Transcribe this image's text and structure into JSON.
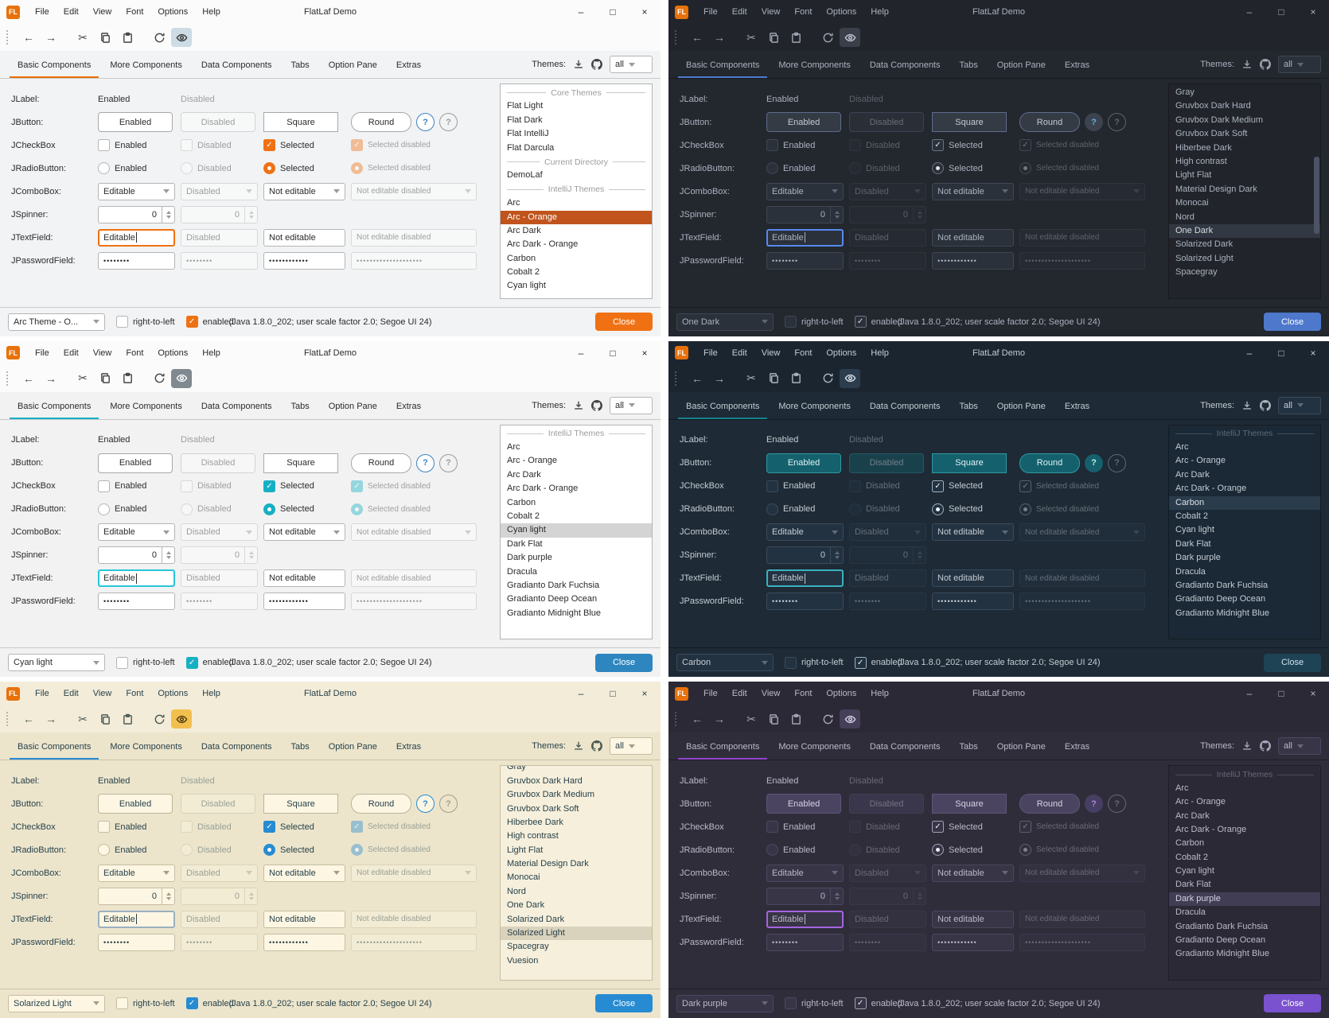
{
  "shared": {
    "logo": "FL",
    "title": "FlatLaf Demo",
    "menus": [
      "File",
      "Edit",
      "View",
      "Font",
      "Options",
      "Help"
    ],
    "tabs": [
      "Basic Components",
      "More Components",
      "Data Components",
      "Tabs",
      "Option Pane",
      "Extras"
    ],
    "themes_label": "Themes:",
    "filter_value": "all",
    "status_info": "(Java 1.8.0_202;  user scale factor 2.0; Segoe UI 24)",
    "close_label": "Close",
    "rtl_label": "right-to-left",
    "enabled_label": "enabled",
    "icons": {
      "minimize": "–",
      "maximize": "□",
      "close": "×",
      "back": "←",
      "forward": "→",
      "cut": "✂",
      "check": "✓"
    },
    "rows": {
      "jlabel": {
        "label": "JLabel:",
        "enabled": "Enabled",
        "disabled": "Disabled"
      },
      "jbutton": {
        "label": "JButton:",
        "enabled": "Enabled",
        "disabled": "Disabled",
        "square": "Square",
        "round": "Round",
        "help": "?"
      },
      "jcheckbox": {
        "label": "JCheckBox",
        "enabled": "Enabled",
        "disabled": "Disabled",
        "selected": "Selected",
        "selected_disabled": "Selected disabled"
      },
      "jradio": {
        "label": "JRadioButton:",
        "enabled": "Enabled",
        "disabled": "Disabled",
        "selected": "Selected",
        "selected_disabled": "Selected disabled"
      },
      "jcombo": {
        "label": "JComboBox:",
        "editable": "Editable",
        "disabled": "Disabled",
        "not_editable": "Not editable",
        "not_editable_disabled": "Not editable disabled"
      },
      "jspinner": {
        "label": "JSpinner:",
        "value": "0"
      },
      "jtext": {
        "label": "JTextField:",
        "editable": "Editable",
        "disabled": "Disabled",
        "not_editable": "Not editable",
        "not_editable_disabled": "Not editable disabled"
      },
      "jpassword": {
        "label": "JPasswordField:",
        "dots8": "••••••••",
        "dots12": "••••••••••••",
        "dots20": "••••••••••••••••••••"
      }
    }
  },
  "windows": [
    {
      "id": "arc-orange",
      "status_combo": "Arc Theme - O...",
      "scrollbar": false,
      "clip_top": false,
      "colors": {
        "bg": "#f2f3f4",
        "titlebar": "#fbfbfb",
        "text": "#2b2b2b",
        "text-muted": "#9b9b9b",
        "icon": "#444444",
        "sep": "#c8c8c8",
        "ctrl-bg": "#ffffff",
        "ctrl-border": "#b5b5b5",
        "btn-bg": "#ffffff",
        "btn-border": "#a8a8a8",
        "btn-text": "#2b2b2b",
        "tab-line": "#e8710a",
        "check-bg": "#ef7113",
        "check-border": "#ef7113",
        "check-mark": "#ffffff",
        "radio-dot": "#ffffff",
        "focus": "#ef7113",
        "list-bg": "#ffffff",
        "list-border": "#b5b5b5",
        "sel-bg": "#c0541c",
        "sel-text": "#ffffff",
        "close-bg": "#ef7113",
        "close-text": "#ffffff",
        "toggle-bg": "#ccdbe4",
        "toggle-fg": "#333333",
        "help-bg": "#ffffff",
        "help-border": "#3b82c4",
        "help-fg": "#3b82c4",
        "scroll-thumb": "transparent"
      },
      "theme_list": [
        {
          "t": "sep",
          "label": "Core Themes"
        },
        {
          "t": "item",
          "label": "Flat Light"
        },
        {
          "t": "item",
          "label": "Flat Dark"
        },
        {
          "t": "item",
          "label": "Flat IntelliJ"
        },
        {
          "t": "item",
          "label": "Flat Darcula"
        },
        {
          "t": "sep",
          "label": "Current Directory"
        },
        {
          "t": "item",
          "label": "DemoLaf"
        },
        {
          "t": "sep",
          "label": "IntelliJ Themes"
        },
        {
          "t": "item",
          "label": "Arc"
        },
        {
          "t": "item",
          "label": "Arc - Orange",
          "sel": true
        },
        {
          "t": "item",
          "label": "Arc Dark"
        },
        {
          "t": "item",
          "label": "Arc Dark - Orange"
        },
        {
          "t": "item",
          "label": "Carbon"
        },
        {
          "t": "item",
          "label": "Cobalt 2"
        },
        {
          "t": "item",
          "label": "Cyan light"
        }
      ]
    },
    {
      "id": "one-dark",
      "status_combo": "One Dark",
      "scrollbar": true,
      "clip_top": false,
      "colors": {
        "bg": "#23272e",
        "titlebar": "#21252b",
        "text": "#abb2bf",
        "text-muted": "#5f6672",
        "icon": "#9da5b3",
        "sep": "#181a1f",
        "ctrl-bg": "#2b313a",
        "ctrl-border": "#404753",
        "btn-bg": "#353b45",
        "btn-border": "#5e6b8c",
        "btn-text": "#c5cbd6",
        "tab-line": "#4f7acc",
        "check-bg": "#2b313a",
        "check-border": "#6b7384",
        "check-mark": "#dfe3ea",
        "radio-dot": "#dfe3ea",
        "focus": "#568af2",
        "list-bg": "#21252b",
        "list-border": "#181a1f",
        "sel-bg": "#323842",
        "sel-text": "#d7dae0",
        "close-bg": "#4d78cc",
        "close-text": "#ffffff",
        "toggle-bg": "#3a3f4a",
        "toggle-fg": "#c5cbd6",
        "help-bg": "#3d434e",
        "help-border": "#3d434e",
        "help-fg": "#61afef",
        "scroll-thumb": "#4b5364"
      },
      "theme_list": [
        {
          "t": "item",
          "label": "Gray"
        },
        {
          "t": "item",
          "label": "Gruvbox Dark Hard"
        },
        {
          "t": "item",
          "label": "Gruvbox Dark Medium"
        },
        {
          "t": "item",
          "label": "Gruvbox Dark Soft"
        },
        {
          "t": "item",
          "label": "Hiberbee Dark"
        },
        {
          "t": "item",
          "label": "High contrast"
        },
        {
          "t": "item",
          "label": "Light Flat"
        },
        {
          "t": "item",
          "label": "Material Design Dark"
        },
        {
          "t": "item",
          "label": "Monocai"
        },
        {
          "t": "item",
          "label": "Nord"
        },
        {
          "t": "item",
          "label": "One Dark",
          "sel": true
        },
        {
          "t": "item",
          "label": "Solarized Dark"
        },
        {
          "t": "item",
          "label": "Solarized Light"
        },
        {
          "t": "item",
          "label": "Spacegray"
        }
      ]
    },
    {
      "id": "cyan-light",
      "status_combo": "Cyan light",
      "scrollbar": false,
      "clip_top": false,
      "colors": {
        "bg": "#f2f2f2",
        "titlebar": "#fbfbfb",
        "text": "#2b2b2b",
        "text-muted": "#9b9b9b",
        "icon": "#444444",
        "sep": "#c8c8c8",
        "ctrl-bg": "#ffffff",
        "ctrl-border": "#b5b5b5",
        "btn-bg": "#ffffff",
        "btn-border": "#a8a8a8",
        "btn-text": "#2b2b2b",
        "tab-line": "#16b0c4",
        "check-bg": "#16b0c4",
        "check-border": "#16b0c4",
        "check-mark": "#ffffff",
        "radio-dot": "#ffffff",
        "focus": "#26c6da",
        "list-bg": "#ffffff",
        "list-border": "#b5b5b5",
        "sel-bg": "#d4d4d4",
        "sel-text": "#2b2b2b",
        "close-bg": "#2e86c0",
        "close-text": "#ffffff",
        "toggle-bg": "#80898f",
        "toggle-fg": "#ffffff",
        "help-bg": "#ffffff",
        "help-border": "#3b82c4",
        "help-fg": "#3b82c4",
        "scroll-thumb": "transparent"
      },
      "theme_list": [
        {
          "t": "sep",
          "label": "IntelliJ Themes"
        },
        {
          "t": "item",
          "label": "Arc"
        },
        {
          "t": "item",
          "label": "Arc - Orange"
        },
        {
          "t": "item",
          "label": "Arc Dark"
        },
        {
          "t": "item",
          "label": "Arc Dark - Orange"
        },
        {
          "t": "item",
          "label": "Carbon"
        },
        {
          "t": "item",
          "label": "Cobalt 2"
        },
        {
          "t": "item",
          "label": "Cyan light",
          "sel": true
        },
        {
          "t": "item",
          "label": "Dark Flat"
        },
        {
          "t": "item",
          "label": "Dark purple"
        },
        {
          "t": "item",
          "label": "Dracula"
        },
        {
          "t": "item",
          "label": "Gradianto Dark Fuchsia"
        },
        {
          "t": "item",
          "label": "Gradianto Deep Ocean"
        },
        {
          "t": "item",
          "label": "Gradianto Midnight Blue"
        }
      ]
    },
    {
      "id": "carbon",
      "status_combo": "Carbon",
      "scrollbar": false,
      "clip_top": false,
      "colors": {
        "bg": "#1e2a35",
        "titlebar": "#1b2530",
        "text": "#c3ccd4",
        "text-muted": "#5d6b78",
        "icon": "#a9b6c0",
        "sep": "#121b23",
        "ctrl-bg": "#233241",
        "ctrl-border": "#3a4b5c",
        "btn-bg": "#14616d",
        "btn-border": "#2e99a3",
        "btn-text": "#dff3f5",
        "tab-line": "#17808a",
        "check-bg": "#233241",
        "check-border": "#9fb0bd",
        "check-mark": "#eef4f8",
        "radio-dot": "#eef4f8",
        "focus": "#39b2bf",
        "list-bg": "#1b2835",
        "list-border": "#121b23",
        "sel-bg": "#2a3c4b",
        "sel-text": "#d8e1e8",
        "close-bg": "#1d4355",
        "close-text": "#cfe3ee",
        "toggle-bg": "#2c3e4e",
        "toggle-fg": "#d8e1e8",
        "help-bg": "#14616d",
        "help-border": "#14616d",
        "help-fg": "#bfeef2",
        "scroll-thumb": "transparent"
      },
      "theme_list": [
        {
          "t": "sep",
          "label": "IntelliJ Themes"
        },
        {
          "t": "item",
          "label": "Arc"
        },
        {
          "t": "item",
          "label": "Arc - Orange"
        },
        {
          "t": "item",
          "label": "Arc Dark"
        },
        {
          "t": "item",
          "label": "Arc Dark - Orange"
        },
        {
          "t": "item",
          "label": "Carbon",
          "sel": true
        },
        {
          "t": "item",
          "label": "Cobalt 2"
        },
        {
          "t": "item",
          "label": "Cyan light"
        },
        {
          "t": "item",
          "label": "Dark Flat"
        },
        {
          "t": "item",
          "label": "Dark purple"
        },
        {
          "t": "item",
          "label": "Dracula"
        },
        {
          "t": "item",
          "label": "Gradianto Dark Fuchsia"
        },
        {
          "t": "item",
          "label": "Gradianto Deep Ocean"
        },
        {
          "t": "item",
          "label": "Gradianto Midnight Blue"
        }
      ]
    },
    {
      "id": "solarized-light",
      "status_combo": "Solarized Light",
      "scrollbar": false,
      "clip_top": true,
      "colors": {
        "bg": "#ece5cc",
        "titlebar": "#f3ecd9",
        "text": "#27414a",
        "text-muted": "#a49e89",
        "icon": "#4b5a52",
        "sep": "#c9c1a8",
        "ctrl-bg": "#fdf6e3",
        "ctrl-border": "#c6bda1",
        "btn-bg": "#fdf6e3",
        "btn-border": "#bdb499",
        "btn-text": "#27414a",
        "tab-line": "#268bd2",
        "check-bg": "#268bd2",
        "check-border": "#268bd2",
        "check-mark": "#ffffff",
        "radio-dot": "#ffffff",
        "focus": "#9bb0c0",
        "list-bg": "#f6efdb",
        "list-border": "#c6bda1",
        "sel-bg": "#d9d2bc",
        "sel-text": "#27414a",
        "close-bg": "#268bd2",
        "close-text": "#ffffff",
        "toggle-bg": "#f2bf4f",
        "toggle-fg": "#4a3a10",
        "help-bg": "#fdf6e3",
        "help-border": "#268bd2",
        "help-fg": "#268bd2",
        "scroll-thumb": "transparent"
      },
      "theme_list": [
        {
          "t": "item",
          "label": "Gray"
        },
        {
          "t": "item",
          "label": "Gruvbox Dark Hard"
        },
        {
          "t": "item",
          "label": "Gruvbox Dark Medium"
        },
        {
          "t": "item",
          "label": "Gruvbox Dark Soft"
        },
        {
          "t": "item",
          "label": "Hiberbee Dark"
        },
        {
          "t": "item",
          "label": "High contrast"
        },
        {
          "t": "item",
          "label": "Light Flat"
        },
        {
          "t": "item",
          "label": "Material Design Dark"
        },
        {
          "t": "item",
          "label": "Monocai"
        },
        {
          "t": "item",
          "label": "Nord"
        },
        {
          "t": "item",
          "label": "One Dark"
        },
        {
          "t": "item",
          "label": "Solarized Dark"
        },
        {
          "t": "item",
          "label": "Solarized Light",
          "sel": true
        },
        {
          "t": "item",
          "label": "Spacegray"
        },
        {
          "t": "item",
          "label": "Vuesion"
        }
      ]
    },
    {
      "id": "dark-purple",
      "status_combo": "Dark purple",
      "scrollbar": false,
      "clip_top": false,
      "colors": {
        "bg": "#302d3b",
        "titlebar": "#2b2936",
        "text": "#bcb8c9",
        "text-muted": "#6a6578",
        "icon": "#a9a4b8",
        "sep": "#1f1d28",
        "ctrl-bg": "#383547",
        "ctrl-border": "#4c4760",
        "btn-bg": "#4a4461",
        "btn-border": "#5d5578",
        "btn-text": "#d6d2e2",
        "tab-line": "#9146cc",
        "check-bg": "#383547",
        "check-border": "#a49fb5",
        "check-mark": "#efedf5",
        "radio-dot": "#efedf5",
        "focus": "#a664e0",
        "list-bg": "#2c2937",
        "list-border": "#1f1d28",
        "sel-bg": "#413d54",
        "sel-text": "#d6d2e2",
        "close-bg": "#7a52cf",
        "close-text": "#ffffff",
        "toggle-bg": "#453f58",
        "toggle-fg": "#d6d2e2",
        "help-bg": "#473f63",
        "help-border": "#473f63",
        "help-fg": "#b084e0",
        "scroll-thumb": "transparent"
      },
      "theme_list": [
        {
          "t": "sep",
          "label": "IntelliJ Themes"
        },
        {
          "t": "item",
          "label": "Arc"
        },
        {
          "t": "item",
          "label": "Arc - Orange"
        },
        {
          "t": "item",
          "label": "Arc Dark"
        },
        {
          "t": "item",
          "label": "Arc Dark - Orange"
        },
        {
          "t": "item",
          "label": "Carbon"
        },
        {
          "t": "item",
          "label": "Cobalt 2"
        },
        {
          "t": "item",
          "label": "Cyan light"
        },
        {
          "t": "item",
          "label": "Dark Flat"
        },
        {
          "t": "item",
          "label": "Dark purple",
          "sel": true
        },
        {
          "t": "item",
          "label": "Dracula"
        },
        {
          "t": "item",
          "label": "Gradianto Dark Fuchsia"
        },
        {
          "t": "item",
          "label": "Gradianto Deep Ocean"
        },
        {
          "t": "item",
          "label": "Gradianto Midnight Blue"
        }
      ]
    }
  ]
}
